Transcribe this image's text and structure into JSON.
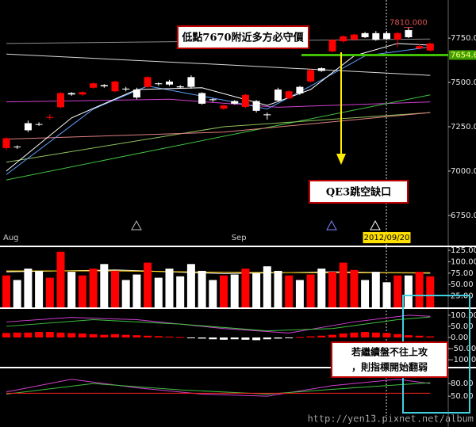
{
  "chart_data": [
    {
      "type": "candlestick",
      "categories": [
        "Aug",
        null,
        null,
        null,
        null,
        null,
        null,
        null,
        null,
        null,
        null,
        null,
        null,
        null,
        null,
        null,
        null,
        null,
        null,
        null,
        null,
        "Sep",
        null,
        null,
        null,
        null,
        null,
        null,
        null,
        null,
        null,
        null,
        null,
        null,
        null,
        "2012/09/20",
        null,
        null,
        null,
        null
      ],
      "open": [
        7130,
        7138,
        7270,
        7265,
        7300,
        7360,
        7440,
        7432,
        7470,
        7485,
        7450,
        7465,
        7460,
        7475,
        7495,
        7505,
        7478,
        7530,
        7440,
        7405,
        7352,
        7395,
        7362,
        7395,
        7320,
        7460,
        7410,
        7475,
        7505,
        7580,
        7675,
        7732,
        7742,
        7778,
        7778,
        7778,
        7742,
        7795,
        7692,
        7680
      ],
      "high": [
        7190,
        7145,
        7285,
        7275,
        7320,
        7445,
        7445,
        7450,
        7500,
        7490,
        7510,
        7475,
        7470,
        7535,
        7500,
        7515,
        7485,
        7540,
        7445,
        7410,
        7375,
        7400,
        7435,
        7400,
        7330,
        7470,
        7455,
        7480,
        7575,
        7585,
        7745,
        7765,
        7775,
        7785,
        7790,
        7790,
        7785,
        7810,
        7715,
        7725
      ],
      "low": [
        7120,
        7125,
        7220,
        7255,
        7290,
        7355,
        7425,
        7425,
        7465,
        7470,
        7445,
        7450,
        7405,
        7470,
        7480,
        7480,
        7465,
        7465,
        7375,
        7390,
        7345,
        7375,
        7355,
        7330,
        7290,
        7390,
        7405,
        7430,
        7500,
        7560,
        7670,
        7725,
        7735,
        7750,
        7735,
        7740,
        7700,
        7750,
        7685,
        7675
      ],
      "close": [
        7185,
        7135,
        7230,
        7262,
        7305,
        7440,
        7432,
        7445,
        7495,
        7478,
        7505,
        7460,
        7415,
        7530,
        7490,
        7488,
        7472,
        7475,
        7380,
        7400,
        7370,
        7380,
        7430,
        7340,
        7315,
        7398,
        7450,
        7438,
        7570,
        7565,
        7740,
        7760,
        7770,
        7755,
        7740,
        7745,
        7778,
        7755,
        7705,
        7720
      ],
      "up_color": "#ff0000",
      "down_color": "#ffffff",
      "ylim": [
        6660,
        7965
      ],
      "yticks": [
        {
          "value": 7750,
          "label": "7750.00"
        },
        {
          "value": 7500,
          "label": "7500.00"
        },
        {
          "value": 7250,
          "label": "7250.00"
        },
        {
          "value": 7000,
          "label": "7000.00"
        },
        {
          "value": 6750,
          "label": "6750.00"
        }
      ],
      "lines": [
        {
          "color": "#8c8c8c",
          "points": [
            [
              0,
              7720
            ],
            [
              39,
              7745
            ]
          ]
        },
        {
          "color": "#d8d8d8",
          "points": [
            [
              0,
              7660
            ],
            [
              20,
              7600
            ],
            [
              39,
              7540
            ]
          ]
        },
        {
          "color": "#d040d0",
          "points": [
            [
              0,
              7390
            ],
            [
              15,
              7405
            ],
            [
              25,
              7360
            ],
            [
              39,
              7390
            ]
          ]
        },
        {
          "color": "#40c040",
          "points": [
            [
              0,
              6950
            ],
            [
              39,
              7430
            ]
          ]
        },
        {
          "color": "#90c060",
          "points": [
            [
              0,
              7050
            ],
            [
              20,
              7250
            ],
            [
              39,
              7330
            ]
          ]
        },
        {
          "color": "#e08080",
          "points": [
            [
              0,
              7180
            ],
            [
              20,
              7220
            ],
            [
              39,
              7330
            ]
          ]
        },
        {
          "color": "#60a0ff",
          "points": [
            [
              0,
              6980
            ],
            [
              8,
              7350
            ],
            [
              13,
              7480
            ],
            [
              20,
              7400
            ],
            [
              24,
              7350
            ],
            [
              28,
              7480
            ],
            [
              33,
              7650
            ],
            [
              39,
              7700
            ]
          ]
        },
        {
          "color": "#ffffff",
          "points": [
            [
              0,
              7000
            ],
            [
              6,
              7300
            ],
            [
              12,
              7460
            ],
            [
              18,
              7470
            ],
            [
              24,
              7370
            ],
            [
              28,
              7460
            ],
            [
              32,
              7650
            ],
            [
              36,
              7720
            ],
            [
              39,
              7710
            ]
          ]
        }
      ],
      "last_price": 7654.6,
      "high_label": {
        "value": 7810,
        "label": "7810.000"
      },
      "annotations": [
        "低點7670附近多方必守價",
        "QE3跳空缺口"
      ]
    },
    {
      "type": "bar",
      "values": [
        70,
        60,
        85,
        80,
        65,
        122,
        78,
        70,
        85,
        95,
        80,
        60,
        72,
        98,
        65,
        85,
        68,
        95,
        80,
        60,
        70,
        72,
        85,
        75,
        90,
        80,
        70,
        60,
        72,
        85,
        78,
        98,
        82,
        60,
        78,
        55,
        70,
        70,
        78,
        68
      ],
      "color": "#ff0000",
      "down_color": "#ffffff",
      "ylim": [
        0,
        132
      ],
      "yticks": [
        {
          "value": 125,
          "label": "125.00"
        },
        {
          "value": 100,
          "label": "100.00"
        },
        {
          "value": 75,
          "label": "75.00"
        },
        {
          "value": 50,
          "label": "50.00"
        },
        {
          "value": 25,
          "label": "25.00"
        }
      ],
      "lines": [
        {
          "color": "#ffffff",
          "points": [
            [
              0,
              78
            ],
            [
              10,
              82
            ],
            [
              20,
              74
            ],
            [
              30,
              78
            ],
            [
              39,
              75
            ]
          ]
        },
        {
          "color": "#ffd000",
          "points": [
            [
              0,
              80
            ],
            [
              10,
              80
            ],
            [
              20,
              77
            ],
            [
              30,
              76
            ],
            [
              39,
              76
            ]
          ]
        }
      ]
    },
    {
      "type": "bar",
      "values": [
        20,
        22,
        22,
        25,
        25,
        22,
        20,
        18,
        15,
        12,
        15,
        12,
        10,
        8,
        6,
        4,
        2,
        -2,
        -5,
        -8,
        -10,
        -8,
        -10,
        -12,
        -8,
        -5,
        -3,
        2,
        5,
        8,
        12,
        18,
        22,
        25,
        22,
        20,
        15,
        10,
        8,
        5
      ],
      "color": "#ff0000",
      "negative_color": "#ffffff",
      "ylim": [
        -128,
        128
      ],
      "yticks": [
        {
          "value": 100,
          "label": "100.00"
        },
        {
          "value": 50,
          "label": "50.00"
        },
        {
          "value": 0,
          "label": "0.00"
        },
        {
          "value": -50,
          "label": "-50.00"
        },
        {
          "value": -100,
          "label": "-100.00"
        }
      ],
      "lines": [
        {
          "color": "#d040d0",
          "points": [
            [
              0,
              70
            ],
            [
              6,
              90
            ],
            [
              12,
              80
            ],
            [
              20,
              40
            ],
            [
              26,
              20
            ],
            [
              32,
              70
            ],
            [
              37,
              100
            ],
            [
              39,
              95
            ]
          ]
        },
        {
          "color": "#40c040",
          "points": [
            [
              0,
              50
            ],
            [
              8,
              80
            ],
            [
              16,
              60
            ],
            [
              24,
              30
            ],
            [
              30,
              40
            ],
            [
              36,
              80
            ],
            [
              39,
              92
            ]
          ]
        }
      ],
      "annotations": [
        "若繼續盤不往上攻",
        "，則指標開始翻弱"
      ]
    },
    {
      "type": "line",
      "ylim": [
        9,
        114
      ],
      "yticks": [
        {
          "value": 80,
          "label": "80.00"
        },
        {
          "value": 50,
          "label": "50.00"
        }
      ],
      "lines": [
        {
          "color": "#d040d0",
          "points": [
            [
              0,
              60
            ],
            [
              6,
              90
            ],
            [
              12,
              70
            ],
            [
              18,
              55
            ],
            [
              24,
              50
            ],
            [
              30,
              75
            ],
            [
              36,
              90
            ],
            [
              39,
              80
            ]
          ]
        },
        {
          "color": "#40c040",
          "points": [
            [
              0,
              55
            ],
            [
              8,
              80
            ],
            [
              16,
              65
            ],
            [
              24,
              55
            ],
            [
              32,
              70
            ],
            [
              39,
              82
            ]
          ]
        },
        {
          "color": "#ff2020",
          "points": [
            [
              0,
              57
            ],
            [
              39,
              57
            ]
          ]
        }
      ]
    }
  ],
  "watermark": "http://yen13.pixnet.net/album"
}
